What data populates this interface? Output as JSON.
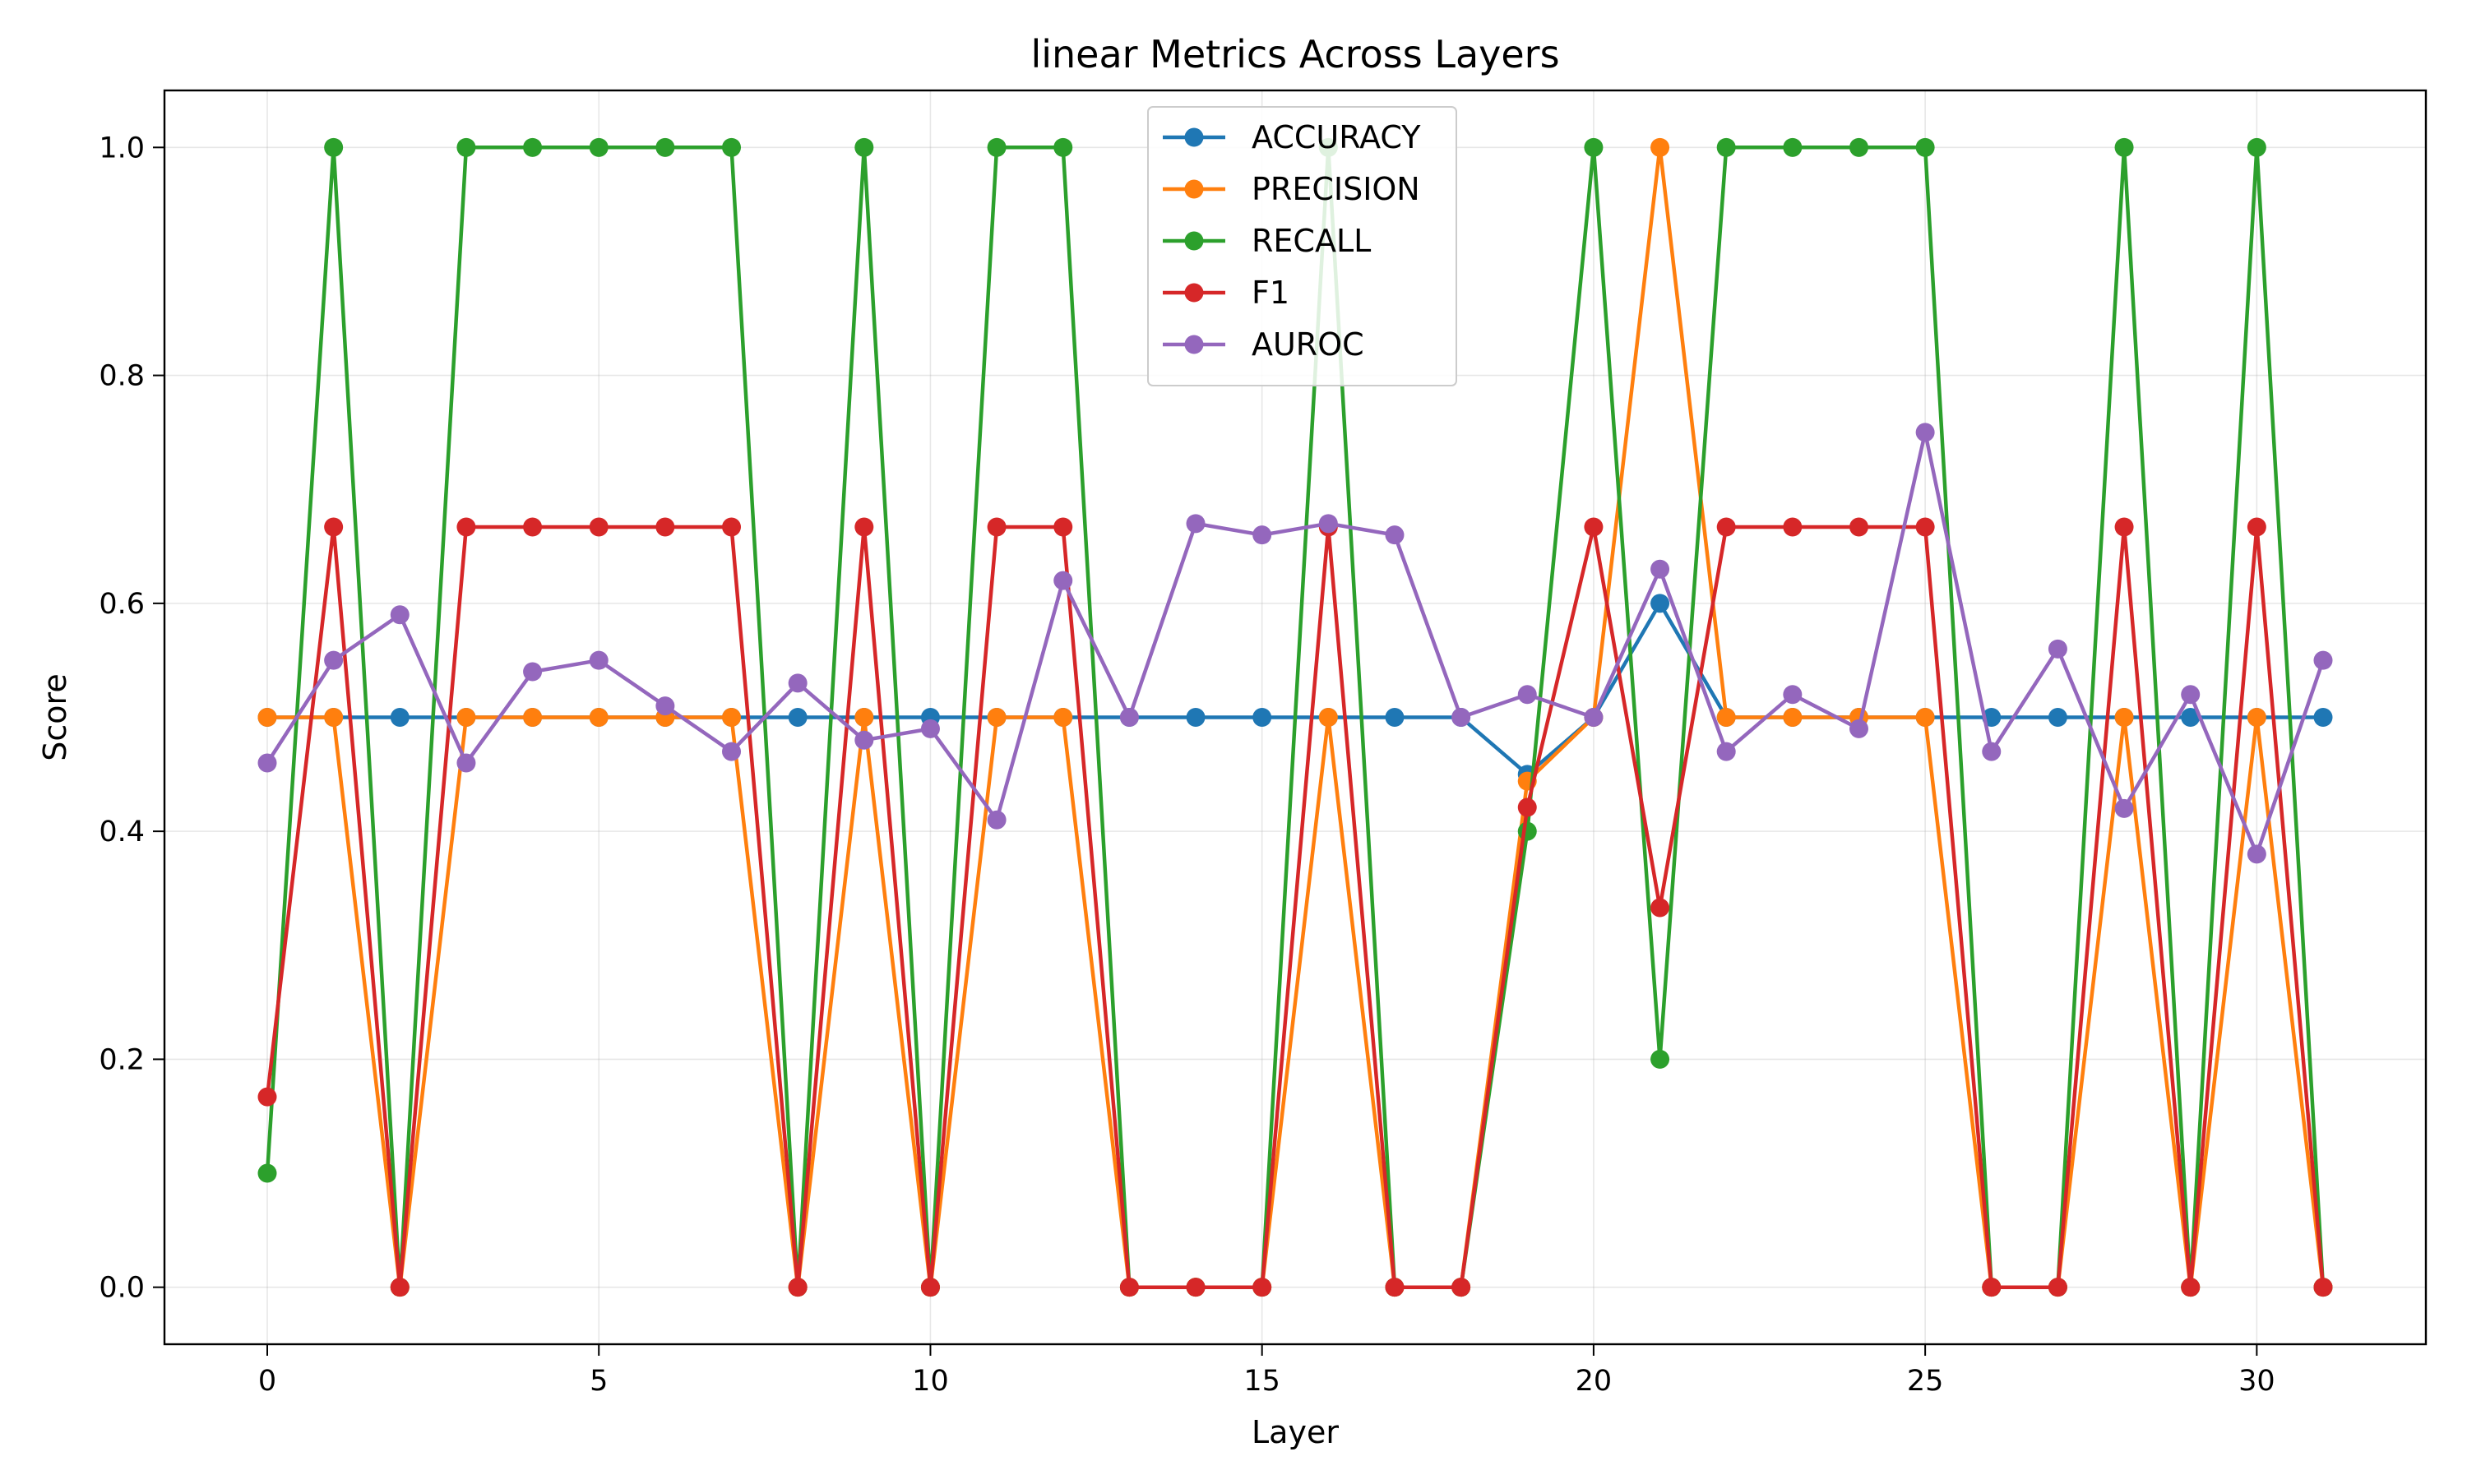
{
  "chart_data": {
    "type": "line",
    "title": "linear Metrics Across Layers",
    "xlabel": "Layer",
    "ylabel": "Score",
    "xlim": [
      -1.55,
      32.55
    ],
    "ylim": [
      -0.05,
      1.05
    ],
    "xticks": [
      0,
      5,
      10,
      15,
      20,
      25,
      30
    ],
    "yticks": [
      0.0,
      0.2,
      0.4,
      0.6,
      0.8,
      1.0
    ],
    "grid": true,
    "legend": "upper center",
    "x": [
      0,
      1,
      2,
      3,
      4,
      5,
      6,
      7,
      8,
      9,
      10,
      11,
      12,
      13,
      14,
      15,
      16,
      17,
      18,
      19,
      20,
      21,
      22,
      23,
      24,
      25,
      26,
      27,
      28,
      29,
      30,
      31
    ],
    "series": [
      {
        "name": "ACCURACY",
        "color": "#1f77b4",
        "values": [
          0.5,
          0.5,
          0.5,
          0.5,
          0.5,
          0.5,
          0.5,
          0.5,
          0.5,
          0.5,
          0.5,
          0.5,
          0.5,
          0.5,
          0.5,
          0.5,
          0.5,
          0.5,
          0.5,
          0.45,
          0.5,
          0.6,
          0.5,
          0.5,
          0.5,
          0.5,
          0.5,
          0.5,
          0.5,
          0.5,
          0.5,
          0.5
        ]
      },
      {
        "name": "PRECISION",
        "color": "#ff7f0e",
        "values": [
          0.5,
          0.5,
          0.0,
          0.5,
          0.5,
          0.5,
          0.5,
          0.5,
          0.0,
          0.5,
          0.0,
          0.5,
          0.5,
          0.0,
          0.0,
          0.0,
          0.5,
          0.0,
          0.0,
          0.444,
          0.5,
          1.0,
          0.5,
          0.5,
          0.5,
          0.5,
          0.0,
          0.0,
          0.5,
          0.0,
          0.5,
          0.0
        ]
      },
      {
        "name": "RECALL",
        "color": "#2ca02c",
        "values": [
          0.1,
          1.0,
          0.0,
          1.0,
          1.0,
          1.0,
          1.0,
          1.0,
          0.0,
          1.0,
          0.0,
          1.0,
          1.0,
          0.0,
          0.0,
          0.0,
          1.0,
          0.0,
          0.0,
          0.4,
          1.0,
          0.2,
          1.0,
          1.0,
          1.0,
          1.0,
          0.0,
          0.0,
          1.0,
          0.0,
          1.0,
          0.0
        ]
      },
      {
        "name": "F1",
        "color": "#d62728",
        "values": [
          0.167,
          0.667,
          0.0,
          0.667,
          0.667,
          0.667,
          0.667,
          0.667,
          0.0,
          0.667,
          0.0,
          0.667,
          0.667,
          0.0,
          0.0,
          0.0,
          0.667,
          0.0,
          0.0,
          0.421,
          0.667,
          0.333,
          0.667,
          0.667,
          0.667,
          0.667,
          0.0,
          0.0,
          0.667,
          0.0,
          0.667,
          0.0
        ]
      },
      {
        "name": "AUROC",
        "color": "#9467bd",
        "values": [
          0.46,
          0.55,
          0.59,
          0.46,
          0.54,
          0.55,
          0.51,
          0.47,
          0.53,
          0.48,
          0.49,
          0.41,
          0.62,
          0.5,
          0.67,
          0.66,
          0.67,
          0.66,
          0.5,
          0.52,
          0.5,
          0.63,
          0.47,
          0.52,
          0.49,
          0.75,
          0.47,
          0.56,
          0.42,
          0.52,
          0.38,
          0.55
        ]
      }
    ]
  }
}
